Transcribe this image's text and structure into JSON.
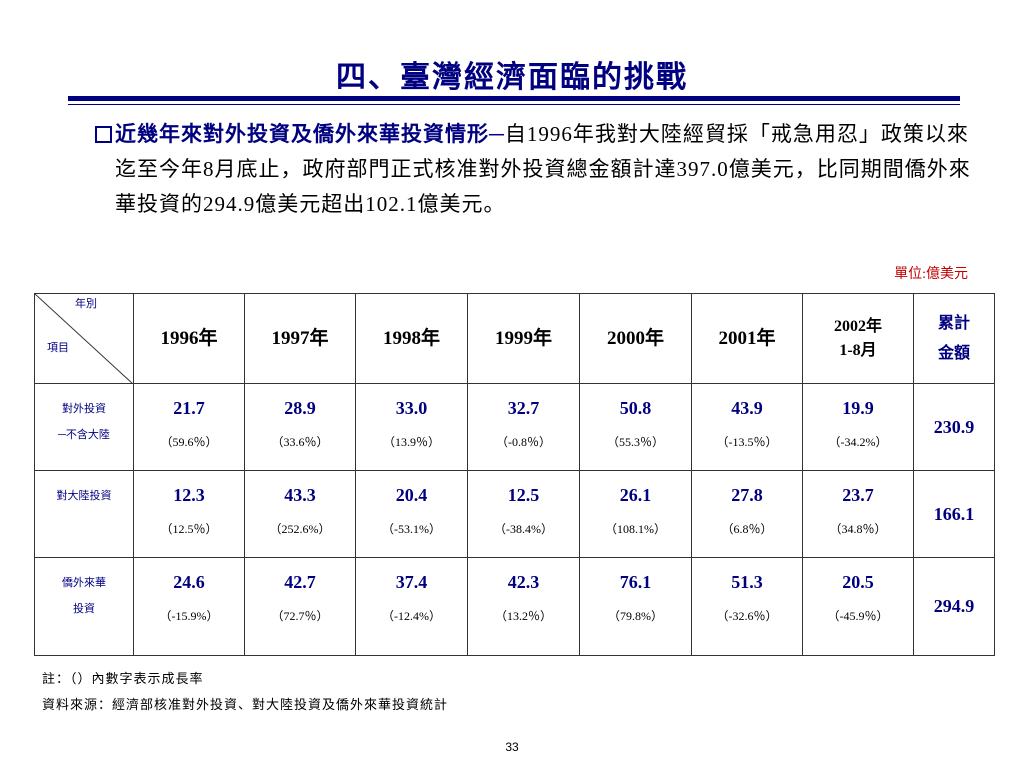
{
  "header": {
    "title": "四、臺灣經濟面臨的挑戰"
  },
  "bullet": {
    "lead": "近幾年來對外投資及僑外來華投資情形─",
    "text": "自1996年我對大陸經貿採「戒急用忍」政策以來迄至今年8月底止，政府部門正式核准對外投資總金額計達397.0億美元，比同期間僑外來華投資的294.9億美元超出102.1億美元。"
  },
  "unit": "單位:億美元",
  "table": {
    "corner": {
      "top": "年別",
      "bottom": "項目"
    },
    "columns": [
      [
        "1996年"
      ],
      [
        "1997年"
      ],
      [
        "1998年"
      ],
      [
        "1999年"
      ],
      [
        "2000年"
      ],
      [
        "2001年"
      ],
      [
        "2002年",
        "1-8月"
      ],
      [
        "累計",
        "金額"
      ]
    ],
    "rows": [
      {
        "label": [
          "對外投資",
          "─不含大陸"
        ],
        "cells": [
          {
            "value": "21.7",
            "growth": "（59.6％）"
          },
          {
            "value": "28.9",
            "growth": "（33.6％）"
          },
          {
            "value": "33.0",
            "growth": "（13.9％）"
          },
          {
            "value": "32.7",
            "growth": "（-0.8％）"
          },
          {
            "value": "50.8",
            "growth": "（55.3％）"
          },
          {
            "value": "43.9",
            "growth": "（-13.5％）"
          },
          {
            "value": "19.9",
            "growth": "（-34.2%）"
          }
        ],
        "total": "230.9"
      },
      {
        "label": [
          "對大陸投資"
        ],
        "cells": [
          {
            "value": "12.3",
            "growth": "（12.5％）"
          },
          {
            "value": "43.3",
            "growth": "（252.6%）"
          },
          {
            "value": "20.4",
            "growth": "（-53.1%）"
          },
          {
            "value": "12.5",
            "growth": "（-38.4%）"
          },
          {
            "value": "26.1",
            "growth": "（108.1%）"
          },
          {
            "value": "27.8",
            "growth": "（6.8％）"
          },
          {
            "value": "23.7",
            "growth": "（34.8％）"
          }
        ],
        "total": "166.1"
      },
      {
        "label": [
          "僑外來華",
          "投資"
        ],
        "cells": [
          {
            "value": "24.6",
            "growth": "（-15.9%）"
          },
          {
            "value": "42.7",
            "growth": "（72.7％）"
          },
          {
            "value": "37.4",
            "growth": "（-12.4%）"
          },
          {
            "value": "42.3",
            "growth": "（13.2％）"
          },
          {
            "value": "76.1",
            "growth": "（79.8%）"
          },
          {
            "value": "51.3",
            "growth": "（-32.6％）"
          },
          {
            "value": "20.5",
            "growth": "（-45.9％）"
          }
        ],
        "total": "294.9"
      }
    ]
  },
  "notes": [
    "註：（）內數字表示成長率",
    "資料來源：經濟部核准對外投資、對大陸投資及僑外來華投資統計"
  ],
  "page_number": "33"
}
